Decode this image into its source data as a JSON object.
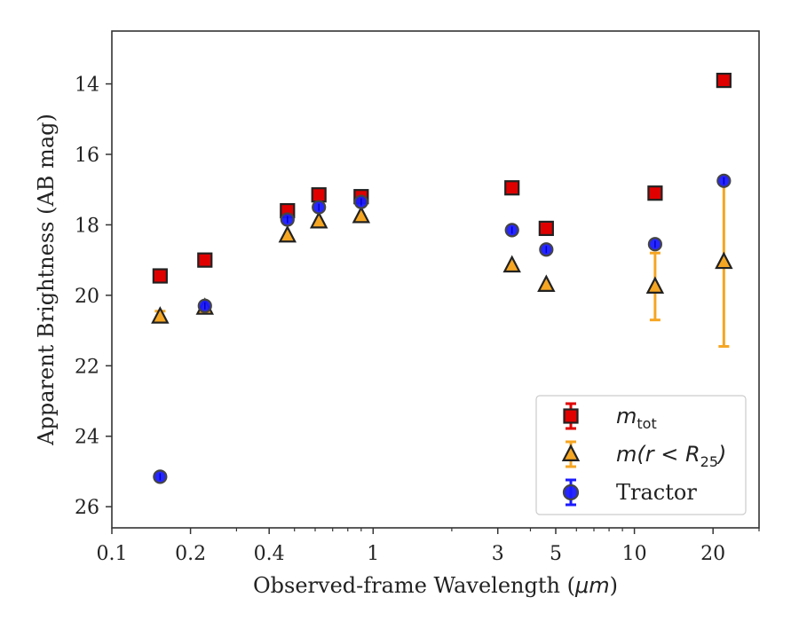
{
  "chart_data": {
    "type": "scatter",
    "xlabel_main": "Observed-frame Wavelength (",
    "xlabel_unit": "μm",
    "xlabel_end": ")",
    "ylabel": "Apparent Brightness (AB mag)",
    "x_scale": "log",
    "xlim": [
      0.1,
      30
    ],
    "ylim": [
      26.6,
      12.5
    ],
    "y_inverted": true,
    "x_ticks": [
      {
        "value": 0.1,
        "label": "0.1"
      },
      {
        "value": 0.2,
        "label": "0.2"
      },
      {
        "value": 0.4,
        "label": "0.4"
      },
      {
        "value": 1,
        "label": "1"
      },
      {
        "value": 3,
        "label": "3"
      },
      {
        "value": 5,
        "label": "5"
      },
      {
        "value": 10,
        "label": "10"
      },
      {
        "value": 20,
        "label": "20"
      }
    ],
    "x_minor_ticks": [
      0.3,
      0.5,
      0.6,
      0.7,
      0.8,
      0.9,
      2,
      4,
      6,
      7,
      8,
      9,
      30
    ],
    "y_ticks": [
      {
        "value": 14,
        "label": "14"
      },
      {
        "value": 16,
        "label": "16"
      },
      {
        "value": 18,
        "label": "18"
      },
      {
        "value": 20,
        "label": "20"
      },
      {
        "value": 22,
        "label": "22"
      },
      {
        "value": 24,
        "label": "24"
      },
      {
        "value": 26,
        "label": "26"
      }
    ],
    "legend_position": "lower-right",
    "series": [
      {
        "name": "m_tot",
        "legend_base": "m",
        "legend_sub": "tot",
        "marker": "square",
        "color": "#e00000",
        "edge_color": "#222222",
        "points": [
          {
            "x": 0.153,
            "y": 19.45,
            "err": 0
          },
          {
            "x": 0.227,
            "y": 19.0,
            "err": 0
          },
          {
            "x": 0.47,
            "y": 17.6,
            "err": 0
          },
          {
            "x": 0.62,
            "y": 17.15,
            "err": 0
          },
          {
            "x": 0.9,
            "y": 17.2,
            "err": 0
          },
          {
            "x": 3.4,
            "y": 16.95,
            "err": 0
          },
          {
            "x": 4.6,
            "y": 18.1,
            "err": 0
          },
          {
            "x": 12.0,
            "y": 17.1,
            "err": 0
          },
          {
            "x": 22.0,
            "y": 13.9,
            "err": 0
          }
        ]
      },
      {
        "name": "m(r < R25)",
        "legend_base": "m(r < R",
        "legend_sub": "25",
        "legend_close": ")",
        "marker": "triangle",
        "color": "#f5a623",
        "edge_color": "#222222",
        "points": [
          {
            "x": 0.153,
            "y": 20.6,
            "err": 0.15
          },
          {
            "x": 0.227,
            "y": 20.35,
            "err": 0
          },
          {
            "x": 0.47,
            "y": 18.3,
            "err": 0
          },
          {
            "x": 0.62,
            "y": 17.9,
            "err": 0
          },
          {
            "x": 0.9,
            "y": 17.75,
            "err": 0
          },
          {
            "x": 3.4,
            "y": 19.15,
            "err": 0
          },
          {
            "x": 4.6,
            "y": 19.7,
            "err": 0
          },
          {
            "x": 12.0,
            "y": 19.75,
            "err": 0.95
          },
          {
            "x": 22.0,
            "y": 19.05,
            "err": 2.4
          }
        ]
      },
      {
        "name": "Tractor",
        "marker": "circle",
        "color": "#1a1aff",
        "edge_color": "#444444",
        "points": [
          {
            "x": 0.153,
            "y": 25.15,
            "err": 0
          },
          {
            "x": 0.227,
            "y": 20.3,
            "err": 0
          },
          {
            "x": 0.47,
            "y": 17.85,
            "err": 0
          },
          {
            "x": 0.62,
            "y": 17.5,
            "err": 0
          },
          {
            "x": 0.9,
            "y": 17.35,
            "err": 0
          },
          {
            "x": 3.4,
            "y": 18.15,
            "err": 0
          },
          {
            "x": 4.6,
            "y": 18.7,
            "err": 0
          },
          {
            "x": 12.0,
            "y": 18.55,
            "err": 0
          },
          {
            "x": 22.0,
            "y": 16.75,
            "err": 0
          }
        ]
      }
    ]
  }
}
